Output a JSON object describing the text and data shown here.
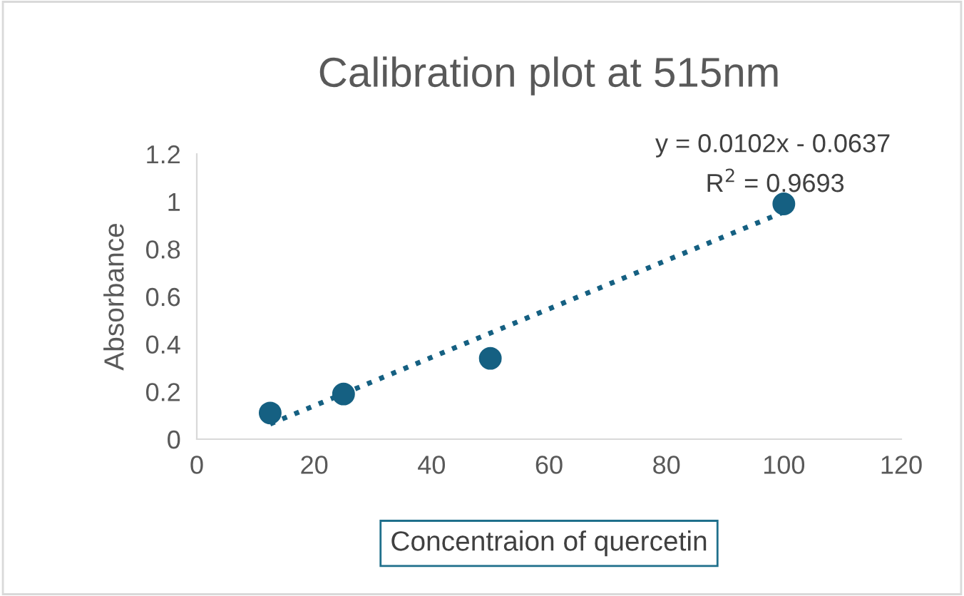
{
  "chart_data": {
    "type": "scatter",
    "title": "Calibration plot at 515nm",
    "xlabel": "Concentraion of quercetin",
    "ylabel": "Absorbance",
    "series": [
      {
        "color": "#156082",
        "marker": "circle",
        "x": [
          12.5,
          25,
          50,
          100
        ],
        "values": [
          0.11,
          0.19,
          0.34,
          0.99
        ]
      },
      {
        "type": "line",
        "color": "#156082",
        "line_style": "dotted",
        "marker": "none",
        "x": [
          12.5,
          100
        ],
        "values": [
          0.064,
          0.956
        ]
      }
    ],
    "annotations": [
      {
        "text": "y = 0.0102x - 0.0637"
      },
      {
        "text": "R$^{2}$ = 0.9693"
      }
    ],
    "xlim": [
      0,
      120
    ],
    "xticks": [
      0,
      20,
      40,
      60,
      80,
      100,
      120
    ],
    "ylim": [
      0,
      1.2
    ],
    "yticks": [
      0,
      {
        "value": 0.2,
        "label": "0.2"
      },
      {
        "value": 0.4,
        "label": "0.4"
      },
      {
        "value": 0.6,
        "label": "0.6"
      },
      {
        "value": 0.8,
        "label": "0.8"
      },
      1,
      {
        "value": 1.2,
        "label": "1.2"
      }
    ],
    "grid": false,
    "legend": false
  }
}
